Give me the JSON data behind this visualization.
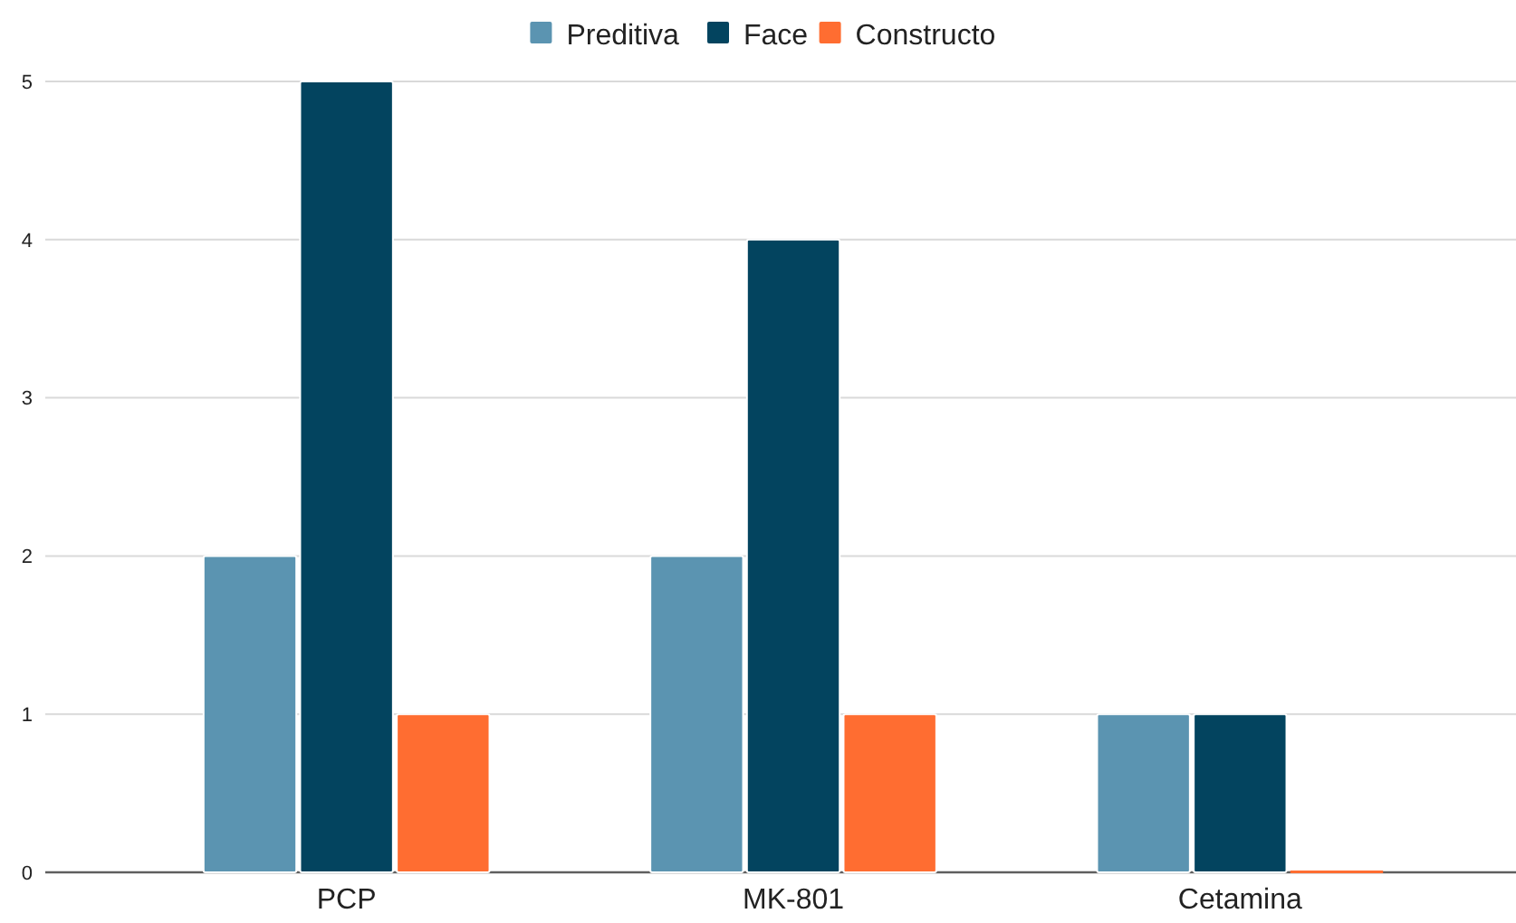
{
  "chart_data": {
    "type": "bar",
    "categories": [
      "PCP",
      "MK-801",
      "Cetamina"
    ],
    "series": [
      {
        "name": "Preditiva",
        "color": "#5b94b1",
        "values": [
          2,
          2,
          1
        ]
      },
      {
        "name": "Face",
        "color": "#03445f",
        "values": [
          5,
          4,
          1
        ]
      },
      {
        "name": "Constructo",
        "color": "#ff6d31",
        "values": [
          1,
          1,
          0
        ]
      }
    ],
    "ylim": [
      0,
      5
    ],
    "yticks": [
      0,
      1,
      2,
      3,
      4,
      5
    ],
    "grid": "y",
    "legend": "top"
  }
}
